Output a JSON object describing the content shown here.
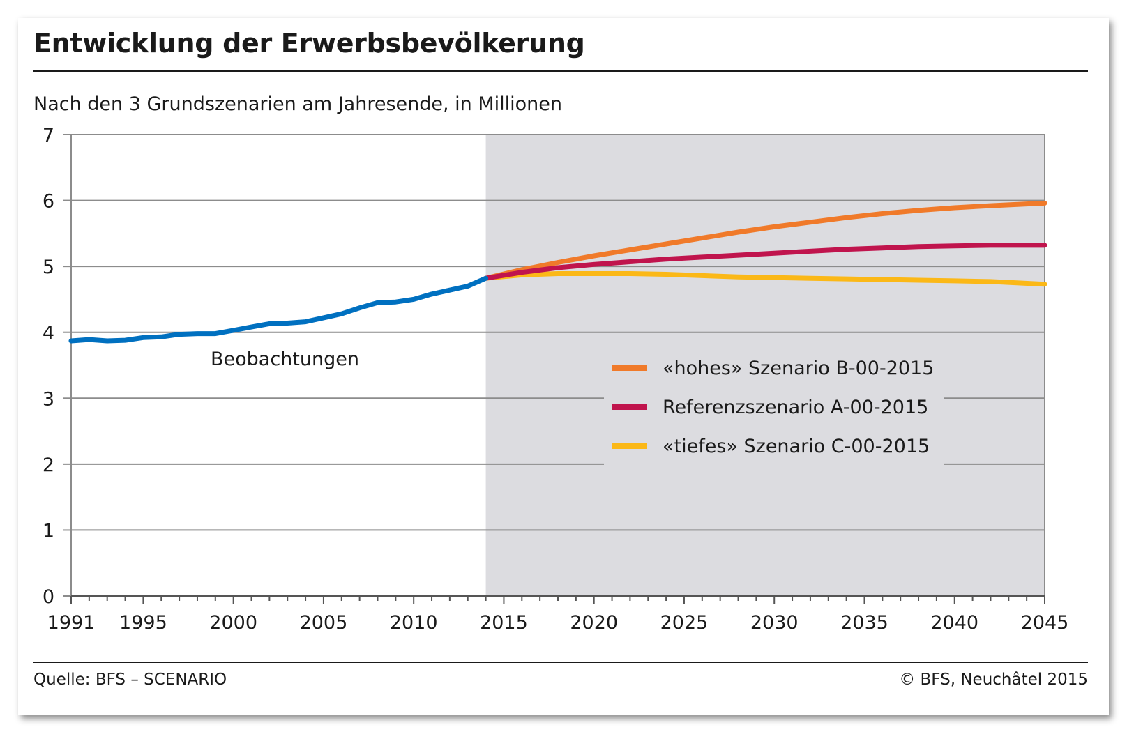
{
  "header": {
    "title": "Entwicklung der Erwerbsbevölkerung",
    "subtitle": "Nach den 3 Grundszenarien am Jahresende, in Millionen"
  },
  "footer": {
    "source": "Quelle: BFS – SCENARIO",
    "copyright": "© BFS, Neuchâtel 2015"
  },
  "annotations": {
    "observations": "Beobachtungen"
  },
  "colors": {
    "observed": "#0070C0",
    "high": "#F07A2A",
    "reference": "#C0144D",
    "low": "#FBB817",
    "projection_bg": "#DCDCE0",
    "grid": "#8C8C8C"
  },
  "chart_data": {
    "type": "line",
    "xlim": [
      1991,
      2045
    ],
    "ylim": [
      0,
      7
    ],
    "x_ticks": [
      1991,
      1995,
      2000,
      2005,
      2010,
      2015,
      2020,
      2025,
      2030,
      2035,
      2040,
      2045
    ],
    "y_ticks": [
      0,
      1,
      2,
      3,
      4,
      5,
      6,
      7
    ],
    "projection_start": 2014,
    "grid": "horizontal",
    "legend_position": "right-center",
    "series": [
      {
        "key": "observed",
        "x": [
          1991,
          1992,
          1993,
          1994,
          1995,
          1996,
          1997,
          1998,
          1999,
          2000,
          2001,
          2002,
          2003,
          2004,
          2005,
          2006,
          2007,
          2008,
          2009,
          2010,
          2011,
          2012,
          2013,
          2014
        ],
        "values": [
          3.87,
          3.89,
          3.87,
          3.88,
          3.92,
          3.93,
          3.97,
          3.98,
          3.98,
          4.03,
          4.08,
          4.13,
          4.14,
          4.16,
          4.22,
          4.28,
          4.37,
          4.45,
          4.46,
          4.5,
          4.58,
          4.64,
          4.7,
          4.82
        ]
      },
      {
        "key": "high",
        "name": "«hohes» Szenario B-00-2015",
        "x": [
          2014,
          2016,
          2018,
          2020,
          2022,
          2024,
          2026,
          2028,
          2030,
          2032,
          2034,
          2036,
          2038,
          2040,
          2042,
          2045
        ],
        "values": [
          4.82,
          4.95,
          5.06,
          5.16,
          5.25,
          5.34,
          5.43,
          5.52,
          5.6,
          5.67,
          5.74,
          5.8,
          5.85,
          5.89,
          5.92,
          5.96
        ]
      },
      {
        "key": "reference",
        "name": "Referenzszenario A-00-2015",
        "x": [
          2014,
          2016,
          2018,
          2020,
          2022,
          2024,
          2026,
          2028,
          2030,
          2032,
          2034,
          2036,
          2038,
          2040,
          2042,
          2045
        ],
        "values": [
          4.82,
          4.91,
          4.98,
          5.03,
          5.07,
          5.11,
          5.14,
          5.17,
          5.2,
          5.23,
          5.26,
          5.28,
          5.3,
          5.31,
          5.32,
          5.32
        ]
      },
      {
        "key": "low",
        "name": "«tiefes» Szenario C-00-2015",
        "x": [
          2014,
          2016,
          2018,
          2020,
          2022,
          2024,
          2026,
          2028,
          2030,
          2032,
          2034,
          2036,
          2038,
          2040,
          2042,
          2045
        ],
        "values": [
          4.82,
          4.87,
          4.89,
          4.89,
          4.89,
          4.88,
          4.86,
          4.84,
          4.83,
          4.82,
          4.81,
          4.8,
          4.79,
          4.78,
          4.77,
          4.73
        ]
      }
    ]
  }
}
